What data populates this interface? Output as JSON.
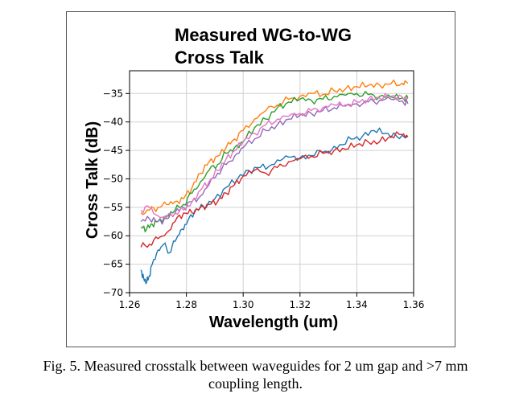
{
  "chart_data": {
    "type": "line",
    "title": [
      "Measured WG-to-WG",
      "Cross Talk"
    ],
    "xlabel": "Wavelength (um)",
    "ylabel": "Cross Talk (dB)",
    "xlim": [
      1.26,
      1.36
    ],
    "ylim": [
      -70,
      -31
    ],
    "xticks": [
      "1.26",
      "1.28",
      "1.30",
      "1.32",
      "1.34",
      "1.36"
    ],
    "yticks": [
      "−35",
      "−40",
      "−45",
      "−50",
      "−55",
      "−60",
      "−65",
      "−70"
    ],
    "grid": true,
    "series": [
      {
        "color": "#1f77b4",
        "x": [
          1.264,
          1.265,
          1.266,
          1.267,
          1.268,
          1.27,
          1.272,
          1.274,
          1.276,
          1.278,
          1.28,
          1.283,
          1.286,
          1.29,
          1.294,
          1.298,
          1.302,
          1.306,
          1.31,
          1.314,
          1.318,
          1.322,
          1.326,
          1.33,
          1.334,
          1.338,
          1.342,
          1.346,
          1.35,
          1.354,
          1.358
        ],
        "y": [
          -66.0,
          -67.5,
          -68.2,
          -67.0,
          -65.0,
          -62.5,
          -61.5,
          -63.0,
          -61.0,
          -59.0,
          -58.0,
          -55.5,
          -55.0,
          -53.5,
          -51.5,
          -50.0,
          -48.5,
          -48.0,
          -47.5,
          -46.5,
          -46.0,
          -46.5,
          -45.0,
          -45.5,
          -44.0,
          -43.0,
          -42.5,
          -41.5,
          -42.0,
          -42.5,
          -42.5
        ]
      },
      {
        "color": "#ff7f0e",
        "x": [
          1.264,
          1.267,
          1.27,
          1.273,
          1.276,
          1.279,
          1.282,
          1.285,
          1.288,
          1.291,
          1.294,
          1.297,
          1.3,
          1.304,
          1.308,
          1.312,
          1.316,
          1.32,
          1.324,
          1.328,
          1.332,
          1.336,
          1.34,
          1.344,
          1.348,
          1.352,
          1.356,
          1.358
        ],
        "y": [
          -56.0,
          -55.5,
          -55.0,
          -54.5,
          -54.0,
          -53.5,
          -51.5,
          -49.0,
          -47.0,
          -46.0,
          -44.5,
          -43.0,
          -41.5,
          -39.5,
          -38.0,
          -37.0,
          -36.0,
          -35.5,
          -35.0,
          -35.2,
          -34.5,
          -34.2,
          -33.8,
          -33.6,
          -33.5,
          -33.3,
          -33.2,
          -33.2
        ]
      },
      {
        "color": "#2ca02c",
        "x": [
          1.264,
          1.266,
          1.268,
          1.27,
          1.273,
          1.276,
          1.279,
          1.282,
          1.285,
          1.288,
          1.291,
          1.294,
          1.297,
          1.3,
          1.304,
          1.308,
          1.312,
          1.316,
          1.32,
          1.324,
          1.328,
          1.332,
          1.336,
          1.34,
          1.344,
          1.348,
          1.352,
          1.356,
          1.358
        ],
        "y": [
          -58.5,
          -58.8,
          -58.0,
          -57.5,
          -56.5,
          -55.5,
          -54.5,
          -52.5,
          -50.5,
          -48.5,
          -47.5,
          -45.5,
          -44.5,
          -43.5,
          -41.0,
          -39.5,
          -37.5,
          -36.5,
          -36.0,
          -36.2,
          -36.0,
          -35.5,
          -35.3,
          -35.0,
          -35.2,
          -35.5,
          -35.6,
          -35.8,
          -35.8
        ]
      },
      {
        "color": "#d62728",
        "x": [
          1.264,
          1.267,
          1.27,
          1.273,
          1.276,
          1.279,
          1.282,
          1.285,
          1.288,
          1.291,
          1.294,
          1.297,
          1.3,
          1.304,
          1.308,
          1.312,
          1.316,
          1.32,
          1.324,
          1.328,
          1.332,
          1.336,
          1.34,
          1.344,
          1.348,
          1.352,
          1.356,
          1.358
        ],
        "y": [
          -62.0,
          -61.5,
          -60.5,
          -59.5,
          -57.5,
          -56.0,
          -56.0,
          -55.0,
          -54.5,
          -54.0,
          -52.5,
          -51.0,
          -49.5,
          -48.5,
          -49.0,
          -48.0,
          -47.0,
          -46.5,
          -46.0,
          -45.5,
          -45.0,
          -44.8,
          -44.0,
          -43.5,
          -43.5,
          -42.5,
          -42.2,
          -42.6
        ]
      },
      {
        "color": "#9467bd",
        "x": [
          1.264,
          1.267,
          1.27,
          1.273,
          1.276,
          1.279,
          1.282,
          1.285,
          1.288,
          1.291,
          1.294,
          1.297,
          1.3,
          1.304,
          1.308,
          1.312,
          1.316,
          1.32,
          1.324,
          1.328,
          1.332,
          1.336,
          1.34,
          1.344,
          1.348,
          1.352,
          1.356,
          1.358
        ],
        "y": [
          -57.5,
          -57.0,
          -57.5,
          -57.0,
          -56.0,
          -55.0,
          -54.0,
          -53.0,
          -51.0,
          -49.0,
          -47.5,
          -46.0,
          -44.5,
          -43.0,
          -41.5,
          -40.5,
          -39.5,
          -38.8,
          -38.5,
          -38.0,
          -37.5,
          -37.2,
          -36.8,
          -36.5,
          -36.2,
          -36.0,
          -36.3,
          -36.8
        ]
      },
      {
        "color": "#e377c2",
        "x": [
          1.264,
          1.267,
          1.27,
          1.273,
          1.276,
          1.279,
          1.282,
          1.285,
          1.288,
          1.291,
          1.294,
          1.297,
          1.3,
          1.304,
          1.308,
          1.312,
          1.316,
          1.32,
          1.324,
          1.328,
          1.332,
          1.336,
          1.34,
          1.344,
          1.348,
          1.352,
          1.356,
          1.358
        ],
        "y": [
          -55.5,
          -55.0,
          -56.5,
          -56.8,
          -56.0,
          -55.5,
          -54.0,
          -52.0,
          -50.5,
          -48.5,
          -46.5,
          -45.0,
          -43.5,
          -42.0,
          -40.5,
          -39.5,
          -39.0,
          -38.5,
          -38.0,
          -37.5,
          -37.0,
          -37.0,
          -36.5,
          -36.0,
          -35.8,
          -35.5,
          -35.6,
          -35.8
        ]
      }
    ]
  },
  "caption": {
    "line1": "Fig. 5. Measured crosstalk between waveguides for 2 um gap and >7 mm",
    "line2": "coupling length."
  }
}
